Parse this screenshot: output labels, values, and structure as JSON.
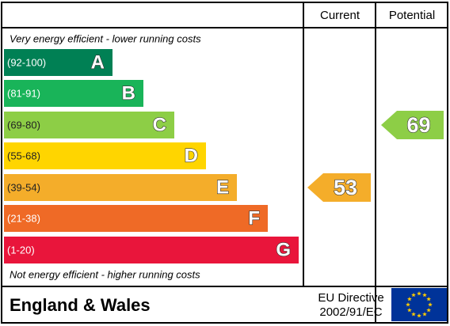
{
  "header": {
    "current": "Current",
    "potential": "Potential"
  },
  "top_note": "Very energy efficient - lower running costs",
  "bottom_note": "Not energy efficient - higher running costs",
  "bands": [
    {
      "range": "(92-100)",
      "letter": "A",
      "color": "#008054"
    },
    {
      "range": "(81-91)",
      "letter": "B",
      "color": "#19b459"
    },
    {
      "range": "(69-80)",
      "letter": "C",
      "color": "#8dce46"
    },
    {
      "range": "(55-68)",
      "letter": "D",
      "color": "#ffd500"
    },
    {
      "range": "(39-54)",
      "letter": "E",
      "color": "#f4ad2a"
    },
    {
      "range": "(21-38)",
      "letter": "F",
      "color": "#ef6a26"
    },
    {
      "range": "(1-20)",
      "letter": "G",
      "color": "#e9153b"
    }
  ],
  "current": 53,
  "potential": 69,
  "footer": {
    "region": "England & Wales",
    "directive": "EU Directive",
    "code": "2002/91/EC"
  }
}
